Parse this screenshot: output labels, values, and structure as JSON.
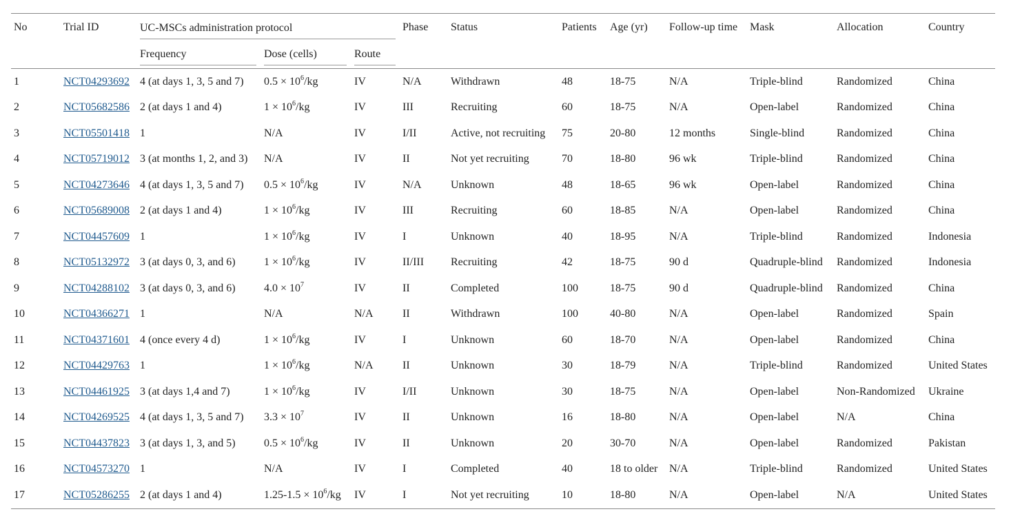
{
  "header": {
    "no": "No",
    "trial_id": "Trial ID",
    "protocol": "UC-MSCs administration protocol",
    "frequency": "Frequency",
    "dose": "Dose (cells)",
    "route": "Route",
    "phase": "Phase",
    "status": "Status",
    "patients": "Patients",
    "age": "Age (yr)",
    "followup": "Follow-up time",
    "mask": "Mask",
    "allocation": "Allocation",
    "country": "Country"
  },
  "link_color": "#1f5a8e",
  "rows": [
    {
      "no": "1",
      "id": "NCT04293692",
      "freq": "4 (at days 1, 3, 5 and 7)",
      "dose": {
        "base": "0.5 × 10",
        "exp": "6",
        "suffix": "/kg"
      },
      "route": "IV",
      "phase": "N/A",
      "status": "Withdrawn",
      "patients": "48",
      "age": "18-75",
      "followup": "N/A",
      "mask": "Triple-blind",
      "allocation": "Randomized",
      "country": "China"
    },
    {
      "no": "2",
      "id": "NCT05682586",
      "freq": "2 (at days 1 and 4)",
      "dose": {
        "base": "1 × 10",
        "exp": "6",
        "suffix": "/kg"
      },
      "route": "IV",
      "phase": "III",
      "status": "Recruiting",
      "patients": "60",
      "age": "18-75",
      "followup": "N/A",
      "mask": "Open-label",
      "allocation": "Randomized",
      "country": "China"
    },
    {
      "no": "3",
      "id": "NCT05501418",
      "freq": "1",
      "dose": {
        "base": "N/A",
        "exp": "",
        "suffix": ""
      },
      "route": "IV",
      "phase": "I/II",
      "status": "Active, not recruiting",
      "patients": "75",
      "age": "20-80",
      "followup": "12 months",
      "mask": "Single-blind",
      "allocation": "Randomized",
      "country": "China"
    },
    {
      "no": "4",
      "id": "NCT05719012",
      "freq": "3 (at months 1, 2, and 3)",
      "dose": {
        "base": "N/A",
        "exp": "",
        "suffix": ""
      },
      "route": "IV",
      "phase": "II",
      "status": "Not yet recruiting",
      "patients": "70",
      "age": "18-80",
      "followup": "96 wk",
      "mask": "Triple-blind",
      "allocation": "Randomized",
      "country": "China"
    },
    {
      "no": "5",
      "id": "NCT04273646",
      "freq": "4 (at days 1, 3, 5 and 7)",
      "dose": {
        "base": "0.5 × 10",
        "exp": "6",
        "suffix": "/kg"
      },
      "route": "IV",
      "phase": "N/A",
      "status": "Unknown",
      "patients": "48",
      "age": "18-65",
      "followup": "96 wk",
      "mask": "Open-label",
      "allocation": "Randomized",
      "country": "China"
    },
    {
      "no": "6",
      "id": "NCT05689008",
      "freq": "2 (at days 1 and 4)",
      "dose": {
        "base": "1 × 10",
        "exp": "6",
        "suffix": "/kg"
      },
      "route": "IV",
      "phase": "III",
      "status": "Recruiting",
      "patients": "60",
      "age": "18-85",
      "followup": "N/A",
      "mask": "Open-label",
      "allocation": "Randomized",
      "country": "China"
    },
    {
      "no": "7",
      "id": "NCT04457609",
      "freq": "1",
      "dose": {
        "base": "1 × 10",
        "exp": "6",
        "suffix": "/kg"
      },
      "route": "IV",
      "phase": "I",
      "status": "Unknown",
      "patients": "40",
      "age": "18-95",
      "followup": "N/A",
      "mask": "Triple-blind",
      "allocation": "Randomized",
      "country": "Indonesia"
    },
    {
      "no": "8",
      "id": "NCT05132972",
      "freq": "3 (at days 0, 3, and 6)",
      "dose": {
        "base": "1 × 10",
        "exp": "6",
        "suffix": "/kg"
      },
      "route": "IV",
      "phase": "II/III",
      "status": "Recruiting",
      "patients": "42",
      "age": "18-75",
      "followup": "90 d",
      "mask": "Quadruple-blind",
      "allocation": "Randomized",
      "country": "Indonesia"
    },
    {
      "no": "9",
      "id": "NCT04288102",
      "freq": "3 (at days 0, 3, and 6)",
      "dose": {
        "base": "4.0 × 10",
        "exp": "7",
        "suffix": ""
      },
      "route": "IV",
      "phase": "II",
      "status": "Completed",
      "patients": "100",
      "age": "18-75",
      "followup": "90 d",
      "mask": "Quadruple-blind",
      "allocation": "Randomized",
      "country": "China"
    },
    {
      "no": "10",
      "id": "NCT04366271",
      "freq": "1",
      "dose": {
        "base": "N/A",
        "exp": "",
        "suffix": ""
      },
      "route": "N/A",
      "phase": "II",
      "status": "Withdrawn",
      "patients": "100",
      "age": "40-80",
      "followup": "N/A",
      "mask": "Open-label",
      "allocation": "Randomized",
      "country": "Spain"
    },
    {
      "no": "11",
      "id": "NCT04371601",
      "freq": "4 (once every 4 d)",
      "dose": {
        "base": "1 × 10",
        "exp": "6",
        "suffix": "/kg"
      },
      "route": "IV",
      "phase": "I",
      "status": "Unknown",
      "patients": "60",
      "age": "18-70",
      "followup": "N/A",
      "mask": "Open-label",
      "allocation": "Randomized",
      "country": "China"
    },
    {
      "no": "12",
      "id": "NCT04429763",
      "freq": "1",
      "dose": {
        "base": "1 × 10",
        "exp": "6",
        "suffix": "/kg"
      },
      "route": "N/A",
      "phase": "II",
      "status": "Unknown",
      "patients": "30",
      "age": "18-79",
      "followup": "N/A",
      "mask": "Triple-blind",
      "allocation": "Randomized",
      "country": "United States"
    },
    {
      "no": "13",
      "id": "NCT04461925",
      "freq": "3 (at days 1,4 and 7)",
      "dose": {
        "base": "1 × 10",
        "exp": "6",
        "suffix": "/kg"
      },
      "route": "IV",
      "phase": "I/II",
      "status": "Unknown",
      "patients": "30",
      "age": "18-75",
      "followup": "N/A",
      "mask": "Open-label",
      "allocation": "Non-Randomized",
      "country": "Ukraine"
    },
    {
      "no": "14",
      "id": "NCT04269525",
      "freq": "4 (at days 1, 3, 5 and 7)",
      "dose": {
        "base": "3.3 × 10",
        "exp": "7",
        "suffix": ""
      },
      "route": "IV",
      "phase": "II",
      "status": "Unknown",
      "patients": "16",
      "age": "18-80",
      "followup": "N/A",
      "mask": "Open-label",
      "allocation": "N/A",
      "country": "China"
    },
    {
      "no": "15",
      "id": "NCT04437823",
      "freq": "3 (at days 1, 3, and 5)",
      "dose": {
        "base": "0.5 × 10",
        "exp": "6",
        "suffix": "/kg"
      },
      "route": "IV",
      "phase": "II",
      "status": "Unknown",
      "patients": "20",
      "age": "30-70",
      "followup": "N/A",
      "mask": "Open-label",
      "allocation": "Randomized",
      "country": "Pakistan"
    },
    {
      "no": "16",
      "id": "NCT04573270",
      "freq": "1",
      "dose": {
        "base": "N/A",
        "exp": "",
        "suffix": ""
      },
      "route": "IV",
      "phase": "I",
      "status": "Completed",
      "patients": "40",
      "age": "18 to older",
      "followup": "N/A",
      "mask": "Triple-blind",
      "allocation": "Randomized",
      "country": "United States"
    },
    {
      "no": "17",
      "id": "NCT05286255",
      "freq": "2 (at days 1 and 4)",
      "dose": {
        "base": "1.25-1.5 × 10",
        "exp": "6",
        "suffix": "/kg"
      },
      "route": "IV",
      "phase": "I",
      "status": "Not yet recruiting",
      "patients": "10",
      "age": "18-80",
      "followup": "N/A",
      "mask": "Open-label",
      "allocation": "N/A",
      "country": "United States"
    }
  ]
}
